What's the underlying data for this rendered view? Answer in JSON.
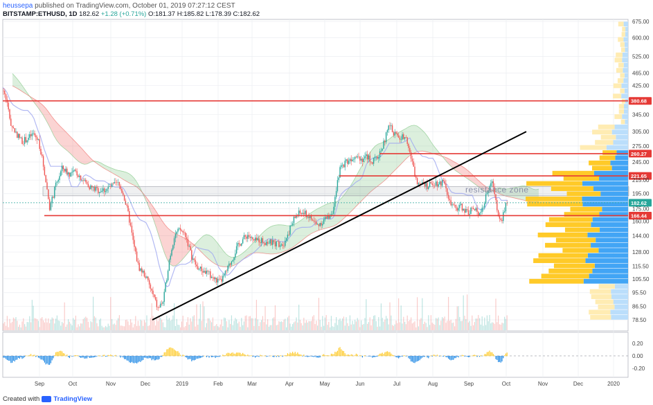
{
  "header": {
    "author": "heussepa",
    "published_text": "published on TradingView.com, October 01, 2019 07:27:12 CEST",
    "symbol": "BITSTAMP:ETHUSD, 1D",
    "last": "182.62",
    "change": "+1.28 (+0.71%)",
    "ohlc": "O:181.37 H:185.82 L:178.39 C:182.62"
  },
  "footer": {
    "created_with": "Created with",
    "brand": "TradingView"
  },
  "chart_data": {
    "type": "candlestick",
    "scale": "log",
    "y_ticks": [
      "675.00",
      "600.00",
      "525.00",
      "465.00",
      "425.00",
      "345.00",
      "305.00",
      "275.00",
      "245.00",
      "215.00",
      "195.00",
      "175.00",
      "160.00",
      "144.00",
      "128.00",
      "115.50",
      "105.50",
      "95.50",
      "86.50",
      "78.50"
    ],
    "x_ticks": [
      "Sep",
      "Oct",
      "Nov",
      "Dec",
      "2019",
      "Feb",
      "Mar",
      "Apr",
      "May",
      "Jun",
      "Jul",
      "Aug",
      "Sep",
      "Oct",
      "Nov",
      "Dec",
      "2020"
    ],
    "price_levels": [
      {
        "value": 380.68,
        "label": "380.68",
        "color": "#e53935"
      },
      {
        "value": 260.27,
        "label": "260.27",
        "color": "#e53935"
      },
      {
        "value": 221.65,
        "label": "221.65",
        "color": "#e53935"
      },
      {
        "value": 182.62,
        "label": "182.62",
        "color": "#26a69a"
      },
      {
        "value": 166.44,
        "label": "166.44",
        "color": "#e53935"
      }
    ],
    "annotation": "resistance zone",
    "oscillator_ticks": [
      "0.20",
      "0.00",
      "-0.20"
    ],
    "close_path": [
      [
        0,
        425
      ],
      [
        8,
        395
      ],
      [
        16,
        320
      ],
      [
        24,
        300
      ],
      [
        32,
        285
      ],
      [
        40,
        290
      ],
      [
        48,
        300
      ],
      [
        56,
        285
      ],
      [
        64,
        230
      ],
      [
        72,
        175
      ],
      [
        80,
        205
      ],
      [
        90,
        235
      ],
      [
        100,
        225
      ],
      [
        110,
        228
      ],
      [
        120,
        215
      ],
      [
        130,
        205
      ],
      [
        140,
        200
      ],
      [
        150,
        200
      ],
      [
        160,
        205
      ],
      [
        170,
        210
      ],
      [
        178,
        195
      ],
      [
        186,
        165
      ],
      [
        193,
        135
      ],
      [
        200,
        115
      ],
      [
        210,
        108
      ],
      [
        220,
        95
      ],
      [
        228,
        85
      ],
      [
        236,
        90
      ],
      [
        244,
        120
      ],
      [
        252,
        145
      ],
      [
        260,
        150
      ],
      [
        268,
        145
      ],
      [
        276,
        125
      ],
      [
        284,
        115
      ],
      [
        292,
        112
      ],
      [
        300,
        110
      ],
      [
        310,
        105
      ],
      [
        318,
        103
      ],
      [
        326,
        110
      ],
      [
        334,
        120
      ],
      [
        342,
        132
      ],
      [
        350,
        140
      ],
      [
        358,
        145
      ],
      [
        366,
        138
      ],
      [
        374,
        140
      ],
      [
        382,
        138
      ],
      [
        390,
        137
      ],
      [
        400,
        136
      ],
      [
        410,
        137
      ],
      [
        418,
        150
      ],
      [
        426,
        165
      ],
      [
        434,
        170
      ],
      [
        442,
        168
      ],
      [
        450,
        162
      ],
      [
        458,
        155
      ],
      [
        466,
        160
      ],
      [
        474,
        165
      ],
      [
        482,
        175
      ],
      [
        490,
        230
      ],
      [
        498,
        245
      ],
      [
        506,
        250
      ],
      [
        514,
        260
      ],
      [
        522,
        250
      ],
      [
        530,
        255
      ],
      [
        538,
        245
      ],
      [
        546,
        255
      ],
      [
        554,
        280
      ],
      [
        562,
        320
      ],
      [
        570,
        300
      ],
      [
        578,
        290
      ],
      [
        586,
        300
      ],
      [
        594,
        250
      ],
      [
        602,
        210
      ],
      [
        610,
        215
      ],
      [
        618,
        205
      ],
      [
        626,
        212
      ],
      [
        634,
        210
      ],
      [
        642,
        215
      ],
      [
        650,
        180
      ],
      [
        658,
        175
      ],
      [
        666,
        178
      ],
      [
        674,
        170
      ],
      [
        682,
        175
      ],
      [
        690,
        170
      ],
      [
        698,
        178
      ],
      [
        706,
        205
      ],
      [
        712,
        210
      ],
      [
        718,
        175
      ],
      [
        724,
        160
      ],
      [
        730,
        180
      ],
      [
        733,
        182.62
      ]
    ],
    "trendline": [
      [
        220,
        78.5
      ],
      [
        760,
        305
      ]
    ]
  }
}
